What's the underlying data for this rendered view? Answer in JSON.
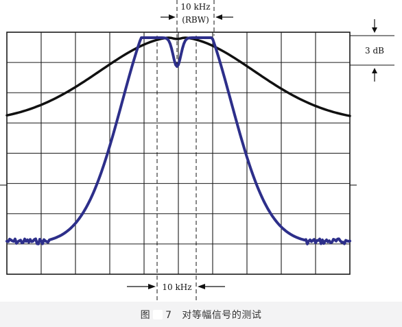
{
  "annotations": {
    "top_bandwidth_line1": "10 kHz",
    "top_bandwidth_line2": "(RBW)",
    "level_label": "3 dB",
    "bottom_bandwidth": "10 kHz"
  },
  "caption": {
    "prefix": "图",
    "number": "7",
    "text": "对等幅信号的测试"
  },
  "colors": {
    "black_trace": "#111111",
    "blue_trace": "#2d2f8a",
    "grid": "#1a1a1a",
    "background": "#f3f3f4"
  },
  "graticule": {
    "columns": 10,
    "rows": 8
  }
}
